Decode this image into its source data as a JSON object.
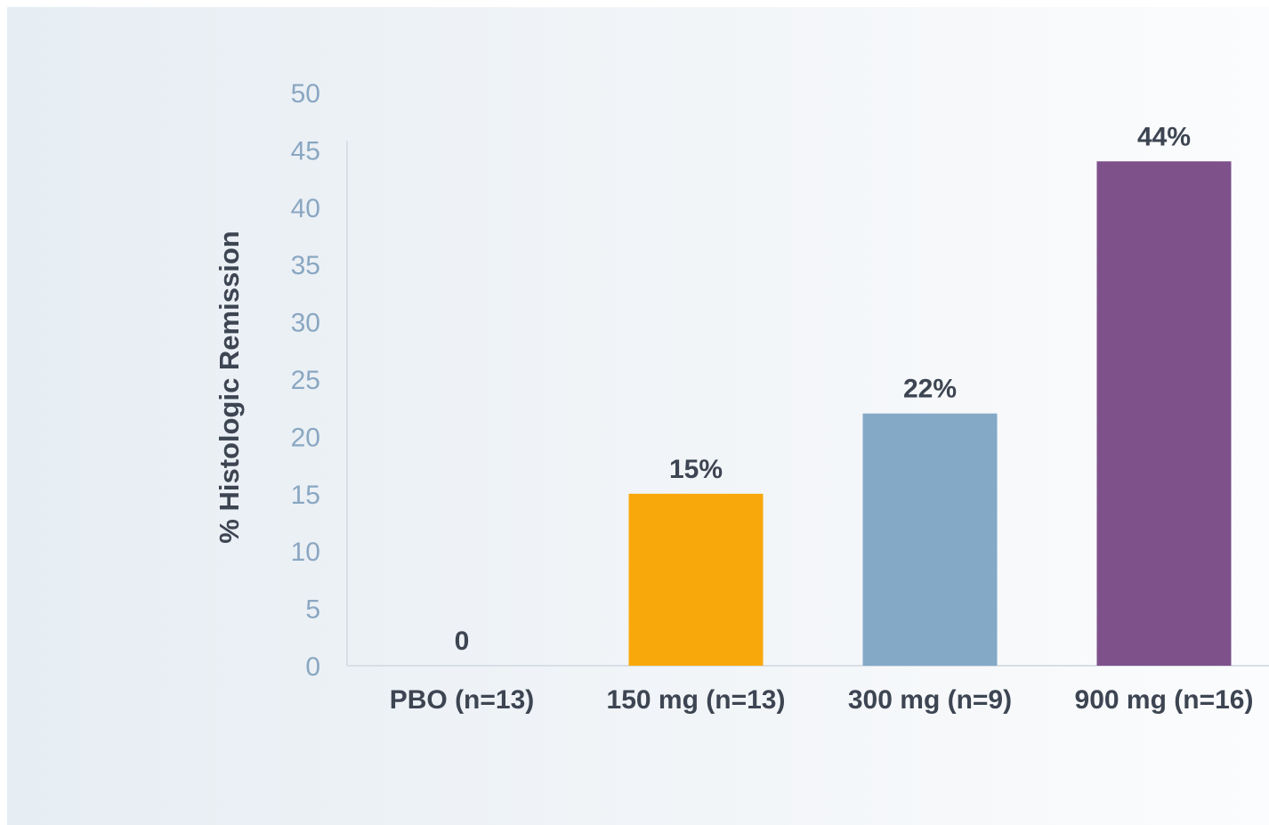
{
  "chart_data": {
    "type": "bar",
    "title": "",
    "xlabel": "",
    "ylabel": "% Histologic Remission",
    "ylim": [
      0,
      50
    ],
    "yticks": [
      0,
      5,
      10,
      15,
      20,
      25,
      30,
      35,
      40,
      45,
      50
    ],
    "categories": [
      "PBO (n=13)",
      "150 mg (n=13)",
      "300 mg (n=9)",
      "900 mg (n=16)"
    ],
    "values": [
      0,
      15,
      22,
      44
    ],
    "data_labels": [
      "0",
      "15%",
      "22%",
      "44%"
    ],
    "colors": [
      "#f9a80b",
      "#f9a80b",
      "#84a9c7",
      "#7e518b"
    ],
    "grid": false,
    "legend": "none"
  }
}
